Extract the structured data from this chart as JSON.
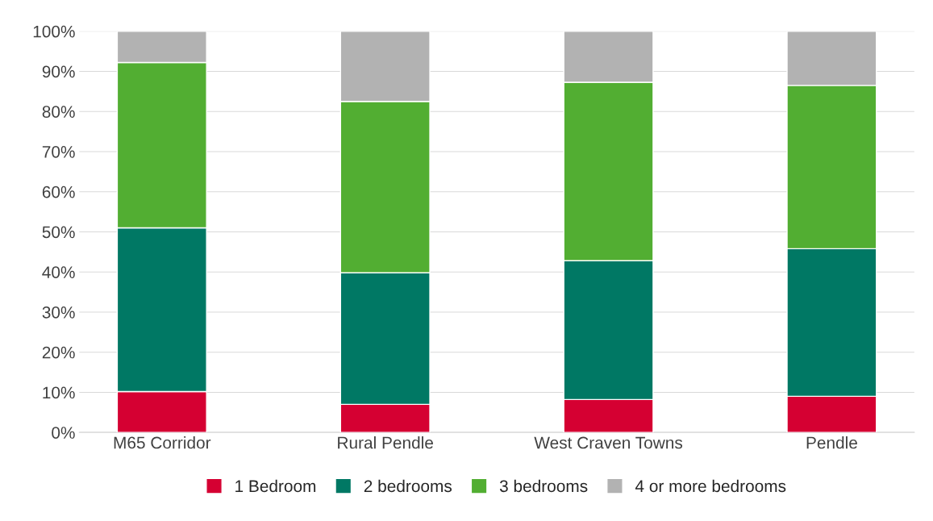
{
  "chart_data": {
    "type": "bar",
    "stacked": true,
    "categories": [
      "M65 Corridor",
      "Rural Pendle",
      "West Craven Towns",
      "Pendle"
    ],
    "series": [
      {
        "name": "1 Bedroom",
        "color": "#d50032",
        "values": [
          10.2,
          7.0,
          8.2,
          9.0
        ]
      },
      {
        "name": "2 bedrooms",
        "color": "#007864",
        "values": [
          40.8,
          32.8,
          34.6,
          36.8
        ]
      },
      {
        "name": "3 bedrooms",
        "color": "#52ae32",
        "values": [
          41.2,
          42.7,
          44.5,
          40.7
        ]
      },
      {
        "name": "4 or more bedrooms",
        "color": "#b2b2b2",
        "values": [
          7.8,
          17.5,
          12.7,
          13.5
        ]
      }
    ],
    "ylim": [
      0,
      100
    ],
    "yticks": [
      {
        "value": 0,
        "label": "0%"
      },
      {
        "value": 10,
        "label": "10%"
      },
      {
        "value": 20,
        "label": "20%"
      },
      {
        "value": 30,
        "label": "30%"
      },
      {
        "value": 40,
        "label": "40%"
      },
      {
        "value": 50,
        "label": "50%"
      },
      {
        "value": 60,
        "label": "60%"
      },
      {
        "value": 70,
        "label": "70%"
      },
      {
        "value": 80,
        "label": "80%"
      },
      {
        "value": 90,
        "label": "90%"
      },
      {
        "value": 100,
        "label": "100%"
      }
    ],
    "grid": "y",
    "legend": "bottom"
  }
}
